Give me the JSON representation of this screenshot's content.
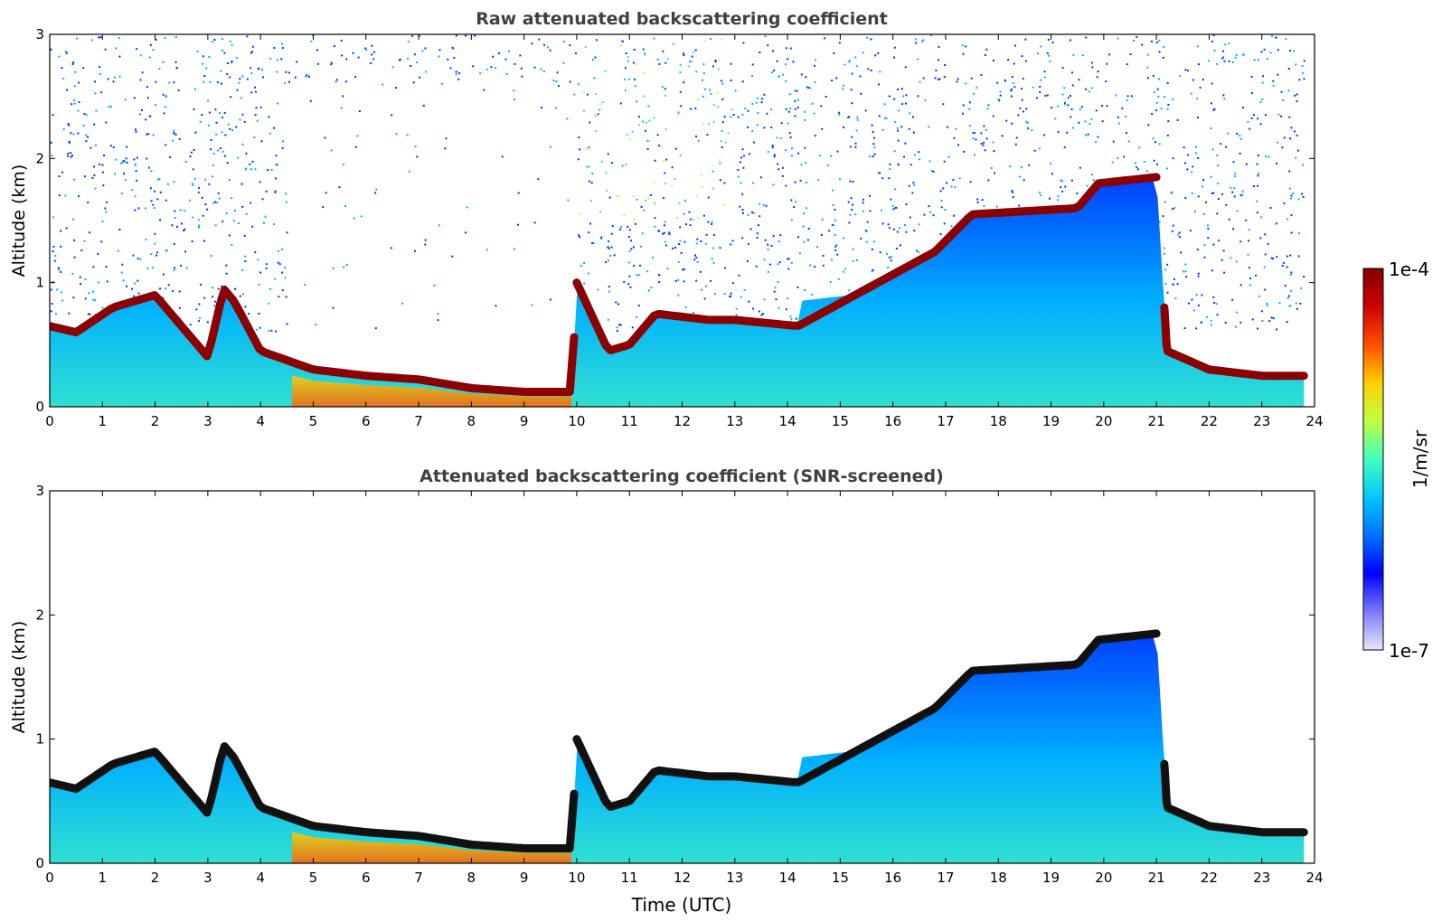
{
  "chart_data": [
    {
      "type": "heatmap",
      "title": "Raw attenuated backscattering coefficient",
      "xlabel": "",
      "ylabel": "Altitude (km)",
      "xlim": [
        0,
        24
      ],
      "ylim": [
        0,
        3
      ],
      "xticks": [
        "0",
        "1",
        "2",
        "3",
        "4",
        "5",
        "6",
        "7",
        "8",
        "9",
        "10",
        "11",
        "12",
        "13",
        "14",
        "15",
        "16",
        "17",
        "18",
        "19",
        "20",
        "21",
        "22",
        "23",
        "24"
      ],
      "yticks": [
        "0",
        "1",
        "2",
        "3"
      ],
      "layer_top_km": {
        "time": [
          0,
          0.5,
          1.2,
          2.0,
          3.0,
          3.3,
          3.5,
          4.0,
          5.0,
          6.0,
          7.0,
          8.0,
          9.0,
          9.9,
          10.0,
          10.6,
          11.0,
          11.5,
          12.5,
          13.0,
          14.2,
          16.8,
          17.5,
          19.5,
          19.9,
          21.0,
          21.2,
          22.0,
          23.0,
          23.8
        ],
        "altitude": [
          0.65,
          0.6,
          0.8,
          0.9,
          0.4,
          0.95,
          0.85,
          0.45,
          0.3,
          0.25,
          0.22,
          0.15,
          0.12,
          0.12,
          1.0,
          0.45,
          0.5,
          0.75,
          0.7,
          0.7,
          0.65,
          1.25,
          1.55,
          1.6,
          1.8,
          1.85,
          0.45,
          0.3,
          0.25,
          0.25
        ]
      }
    },
    {
      "type": "heatmap",
      "title": "Attenuated backscattering coefficient (SNR-screened)",
      "xlabel": "Time (UTC)",
      "ylabel": "Altitude (km)",
      "xlim": [
        0,
        24
      ],
      "ylim": [
        0,
        3
      ],
      "xticks": [
        "0",
        "1",
        "2",
        "3",
        "4",
        "5",
        "6",
        "7",
        "8",
        "9",
        "10",
        "11",
        "12",
        "13",
        "14",
        "15",
        "16",
        "17",
        "18",
        "19",
        "20",
        "21",
        "22",
        "23",
        "24"
      ],
      "yticks": [
        "0",
        "1",
        "2",
        "3"
      ]
    }
  ],
  "colorbar": {
    "label": "1/m/sr",
    "max_label": "1e-4",
    "min_label": "1e-7",
    "colors": [
      "#e8e8f8",
      "#7a7aff",
      "#0000ff",
      "#0070ff",
      "#00c8ff",
      "#40ffc0",
      "#c0ff40",
      "#ffd000",
      "#ff5000",
      "#d00000",
      "#800000"
    ]
  },
  "colors": {
    "title_color": "#404040",
    "layer_color": "#8b0000",
    "screened_layer_color": "#111111"
  }
}
